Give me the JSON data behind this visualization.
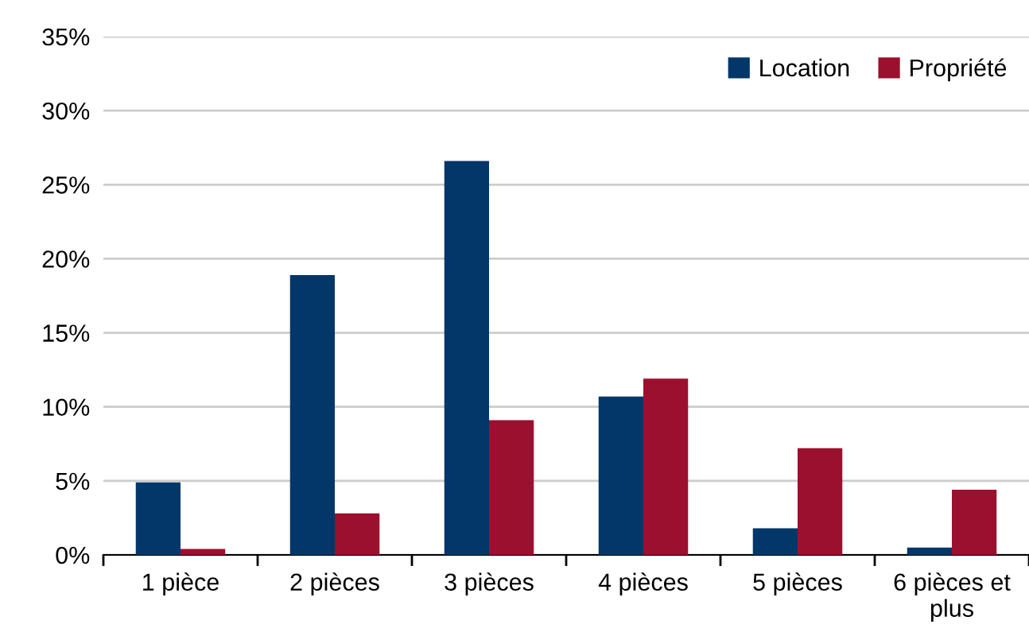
{
  "chart_data": {
    "type": "bar",
    "categories": [
      "1 pièce",
      "2 pièces",
      "3 pièces",
      "4 pièces",
      "5 pièces",
      "6 pièces et\nplus"
    ],
    "series": [
      {
        "name": "Location",
        "color": "#03376a",
        "values": [
          4.9,
          18.9,
          26.6,
          10.7,
          1.8,
          0.5
        ]
      },
      {
        "name": "Propriété",
        "color": "#9c102f",
        "values": [
          0.4,
          2.8,
          9.1,
          11.9,
          7.2,
          4.4
        ]
      }
    ],
    "ylim": [
      0,
      35
    ],
    "yticks": [
      {
        "value": 0,
        "label": "0%"
      },
      {
        "value": 5,
        "label": "5%"
      },
      {
        "value": 10,
        "label": "10%"
      },
      {
        "value": 15,
        "label": "15%"
      },
      {
        "value": 20,
        "label": "20%"
      },
      {
        "value": 25,
        "label": "25%"
      },
      {
        "value": 30,
        "label": "30%"
      },
      {
        "value": 35,
        "label": "35%"
      }
    ],
    "grid": "y",
    "legend": "top right"
  }
}
